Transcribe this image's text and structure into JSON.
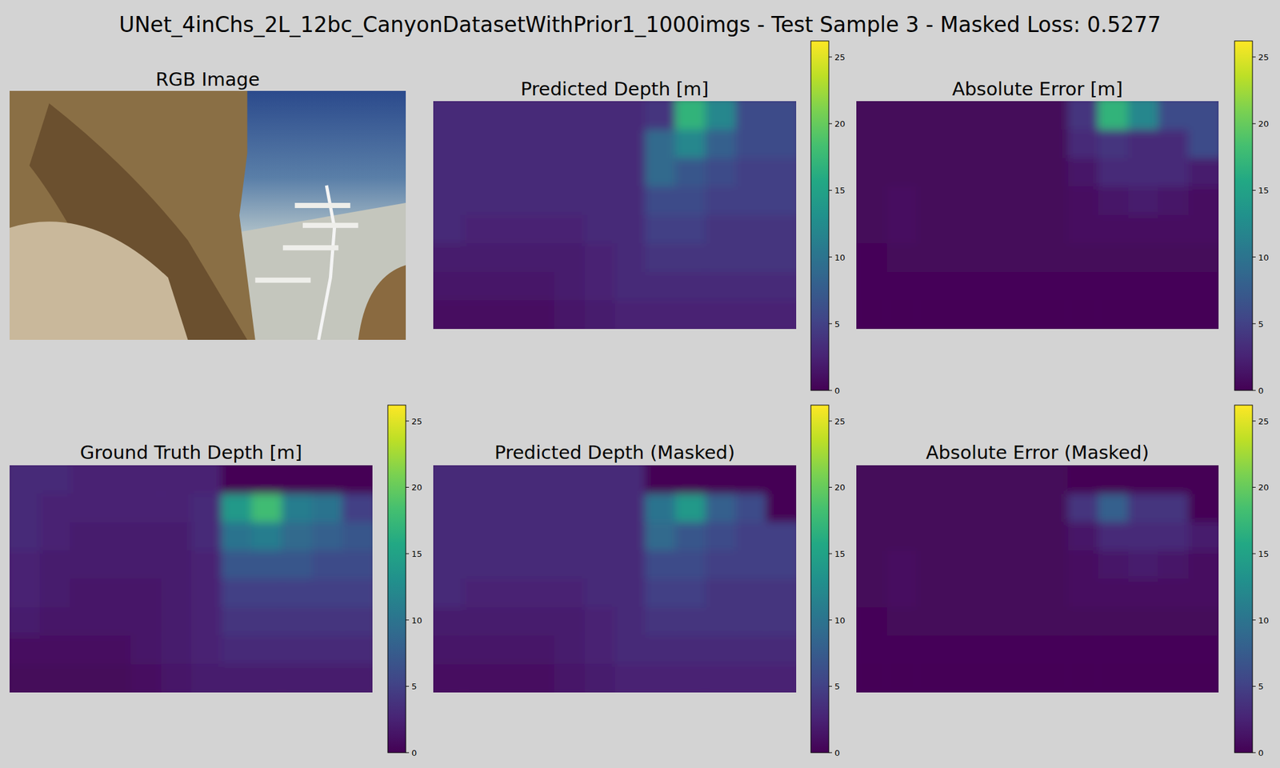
{
  "figure": {
    "title": "UNet_4inChs_2L_12bc_CanyonDatasetWithPrior1_1000imgs - Test Sample 3 - Masked Loss: 0.5277"
  },
  "chart_data": [
    {
      "type": "image",
      "title": "RGB Image"
    },
    {
      "type": "heatmap",
      "title": "Predicted Depth [m]",
      "tick_labels": false,
      "color_range": [
        0,
        26.2
      ],
      "color_ticks": [
        0,
        5,
        10,
        15,
        20,
        25
      ],
      "cells": [
        [
          3,
          3,
          3,
          3,
          3,
          3,
          3,
          4,
          17,
          12,
          6,
          6
        ],
        [
          3,
          3,
          3,
          3,
          3,
          3,
          3,
          9,
          12,
          8,
          6,
          6
        ],
        [
          3,
          3,
          3,
          3,
          3,
          3,
          3,
          9,
          7,
          6,
          5,
          5
        ],
        [
          3,
          3,
          3,
          3,
          3,
          3,
          3,
          6,
          6,
          5,
          5,
          5
        ],
        [
          3,
          2.5,
          2.5,
          2.5,
          2.5,
          3,
          3,
          5,
          5,
          4,
          4,
          4
        ],
        [
          2,
          2,
          2,
          2,
          2,
          2.5,
          3,
          4,
          4,
          4,
          4,
          4
        ],
        [
          1.5,
          1.5,
          1.5,
          1.5,
          2,
          2.5,
          3,
          3,
          3,
          3,
          3,
          3
        ],
        [
          1,
          1,
          1,
          1,
          1.5,
          2,
          2.5,
          2.5,
          2.5,
          2.5,
          2.5,
          2.5
        ]
      ]
    },
    {
      "type": "heatmap",
      "title": "Absolute Error [m]",
      "tick_labels": false,
      "color_range": [
        0,
        26.2
      ],
      "color_ticks": [
        0,
        5,
        10,
        15,
        20,
        25
      ],
      "cells": [
        [
          0.5,
          0.5,
          0.5,
          0.5,
          0.5,
          0.5,
          0.5,
          4,
          17,
          12,
          6,
          6
        ],
        [
          0.5,
          0.5,
          0.5,
          0.5,
          0.5,
          0.5,
          0.5,
          3,
          4,
          3,
          3,
          6
        ],
        [
          0.5,
          0.5,
          0.5,
          0.5,
          0.5,
          0.5,
          0.5,
          1.5,
          3,
          3,
          3,
          2
        ],
        [
          0.5,
          1,
          0.5,
          0.5,
          0.5,
          0.5,
          0.5,
          1,
          1.5,
          2,
          1.5,
          1
        ],
        [
          0.5,
          1,
          0.5,
          0.5,
          0.5,
          0.5,
          0.5,
          1,
          1,
          1,
          1,
          1
        ],
        [
          0.3,
          0.5,
          0.5,
          0.5,
          0.5,
          0.5,
          0.5,
          0.5,
          0.5,
          0.5,
          0.5,
          0.5
        ],
        [
          0.3,
          0.3,
          0.3,
          0.3,
          0.3,
          0.3,
          0.3,
          0.3,
          0.3,
          0.3,
          0.3,
          0.3
        ],
        [
          0.2,
          0.2,
          0.2,
          0.2,
          0.2,
          0.2,
          0.2,
          0.2,
          0.2,
          0.2,
          0.2,
          0.2
        ]
      ]
    },
    {
      "type": "heatmap",
      "title": "Ground Truth Depth [m]",
      "tick_labels": false,
      "color_range": [
        0,
        26.2
      ],
      "color_ticks": [
        0,
        5,
        10,
        15,
        20,
        25
      ],
      "cells": [
        [
          3,
          3,
          2.5,
          2.5,
          2.5,
          2.5,
          2.5,
          0,
          0,
          0,
          0,
          0
        ],
        [
          3,
          2.5,
          2.5,
          2.5,
          2.5,
          2.5,
          3,
          14,
          18,
          11,
          10,
          5
        ],
        [
          3,
          2.5,
          2,
          2,
          2,
          2,
          3,
          10,
          11,
          9,
          8,
          7
        ],
        [
          2.5,
          2,
          2,
          2,
          2,
          2,
          2.5,
          7,
          7,
          7,
          6,
          6
        ],
        [
          2.5,
          2,
          1.5,
          1.5,
          1.5,
          2,
          2.5,
          5,
          5,
          5,
          5,
          5
        ],
        [
          2,
          1.5,
          1.5,
          1.5,
          1.5,
          2,
          2.5,
          4,
          4,
          4,
          4,
          4
        ],
        [
          1,
          1,
          1,
          1,
          1.5,
          2,
          2.5,
          3,
          3,
          3,
          3,
          3
        ],
        [
          0.5,
          0.5,
          0.5,
          0.5,
          1,
          1.5,
          2,
          2,
          2,
          2,
          2,
          2
        ]
      ]
    },
    {
      "type": "heatmap",
      "title": "Predicted Depth (Masked)",
      "tick_labels": false,
      "color_range": [
        0,
        26.2
      ],
      "color_ticks": [
        0,
        5,
        10,
        15,
        20,
        25
      ],
      "cells": [
        [
          3,
          3,
          3,
          3,
          3,
          3,
          3,
          0,
          0,
          0,
          0,
          0
        ],
        [
          3,
          3,
          3,
          3,
          3,
          3,
          3,
          10,
          14,
          8,
          6,
          0
        ],
        [
          3,
          3,
          3,
          3,
          3,
          3,
          3,
          9,
          7,
          6,
          5,
          5
        ],
        [
          3,
          3,
          3,
          3,
          3,
          3,
          3,
          6,
          6,
          5,
          5,
          5
        ],
        [
          3,
          2.5,
          2.5,
          2.5,
          2.5,
          3,
          3,
          5,
          5,
          4,
          4,
          4
        ],
        [
          2,
          2,
          2,
          2,
          2,
          2.5,
          3,
          4,
          4,
          4,
          4,
          4
        ],
        [
          1.5,
          1.5,
          1.5,
          1.5,
          2,
          2.5,
          3,
          3,
          3,
          3,
          3,
          3
        ],
        [
          1,
          1,
          1,
          1,
          1.5,
          2,
          2.5,
          2.5,
          2.5,
          2.5,
          2.5,
          2.5
        ]
      ]
    },
    {
      "type": "heatmap",
      "title": "Absolute Error (Masked)",
      "tick_labels": false,
      "color_range": [
        0,
        26.2
      ],
      "color_ticks": [
        0,
        5,
        10,
        15,
        20,
        25
      ],
      "cells": [
        [
          0.5,
          0.5,
          0.5,
          0.5,
          0.5,
          0.5,
          0.5,
          0,
          0,
          0,
          0,
          0
        ],
        [
          0.5,
          0.5,
          0.5,
          0.5,
          0.5,
          0.5,
          0.5,
          4,
          8,
          4,
          4,
          0
        ],
        [
          0.5,
          0.5,
          0.5,
          0.5,
          0.5,
          0.5,
          0.5,
          1.5,
          3,
          3,
          3,
          2
        ],
        [
          0.5,
          1,
          0.5,
          0.5,
          0.5,
          0.5,
          0.5,
          1,
          1.5,
          2,
          1.5,
          1
        ],
        [
          0.5,
          1,
          0.5,
          0.5,
          0.5,
          0.5,
          0.5,
          1,
          1,
          1,
          1,
          1
        ],
        [
          0.3,
          0.5,
          0.5,
          0.5,
          0.5,
          0.5,
          0.5,
          0.5,
          0.5,
          0.5,
          0.5,
          0.5
        ],
        [
          0.3,
          0.3,
          0.3,
          0.3,
          0.3,
          0.3,
          0.3,
          0.3,
          0.3,
          0.3,
          0.3,
          0.3
        ],
        [
          0.2,
          0.2,
          0.2,
          0.2,
          0.2,
          0.2,
          0.2,
          0.2,
          0.2,
          0.2,
          0.2,
          0.2
        ]
      ]
    }
  ]
}
